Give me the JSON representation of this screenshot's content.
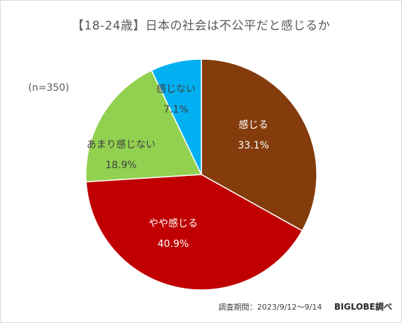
{
  "title": "【18-24歳】日本の社会は不公平だと感じるか",
  "sample_note": "(n=350)",
  "footer": {
    "period": "調査期間：2023/9/12～9/14",
    "source": "BIGLOBE調べ"
  },
  "chart_data": {
    "type": "pie",
    "title": "【18-24歳】日本の社会は不公平だと感じるか",
    "start": "12 o'clock",
    "direction": "clockwise",
    "slices": [
      {
        "label": "感じる",
        "value": 33.1,
        "value_label": "33.1%",
        "color": "#843c0c",
        "text_color": "#ffffff"
      },
      {
        "label": "やや感じる",
        "value": 40.9,
        "value_label": "40.9%",
        "color": "#c00000",
        "text_color": "#ffffff"
      },
      {
        "label": "あまり感じない",
        "value": 18.9,
        "value_label": "18.9%",
        "color": "#92d050",
        "text_color": "#404040"
      },
      {
        "label": "感じない",
        "value": 7.1,
        "value_label": "7.1%",
        "color": "#00b0f0",
        "text_color": "#404040"
      }
    ]
  }
}
